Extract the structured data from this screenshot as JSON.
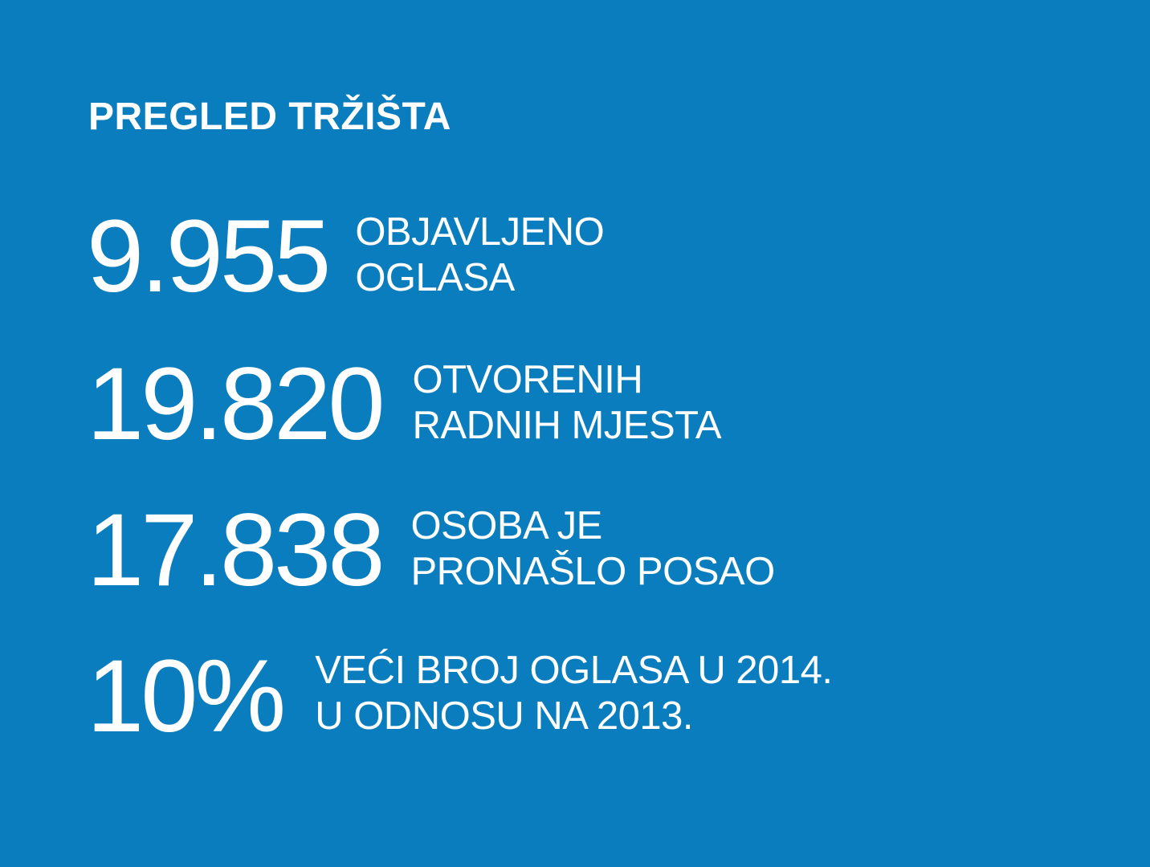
{
  "title": "PREGLED TRŽIŠTA",
  "background_color": "#0a7dbf",
  "text_color": "#ffffff",
  "stats": [
    {
      "value": "9.955",
      "label_line1": "OBJAVLJENO",
      "label_line2": "OGLASA"
    },
    {
      "value": "19.820",
      "label_line1": "OTVORENIH",
      "label_line2": "RADNIH MJESTA"
    },
    {
      "value": "17.838",
      "label_line1": "OSOBA JE",
      "label_line2": "PRONAŠLO POSAO"
    },
    {
      "value": "10%",
      "label_line1": "VEĆI BROJ OGLASA U 2014.",
      "label_line2": "U ODNOSU NA 2013."
    }
  ]
}
